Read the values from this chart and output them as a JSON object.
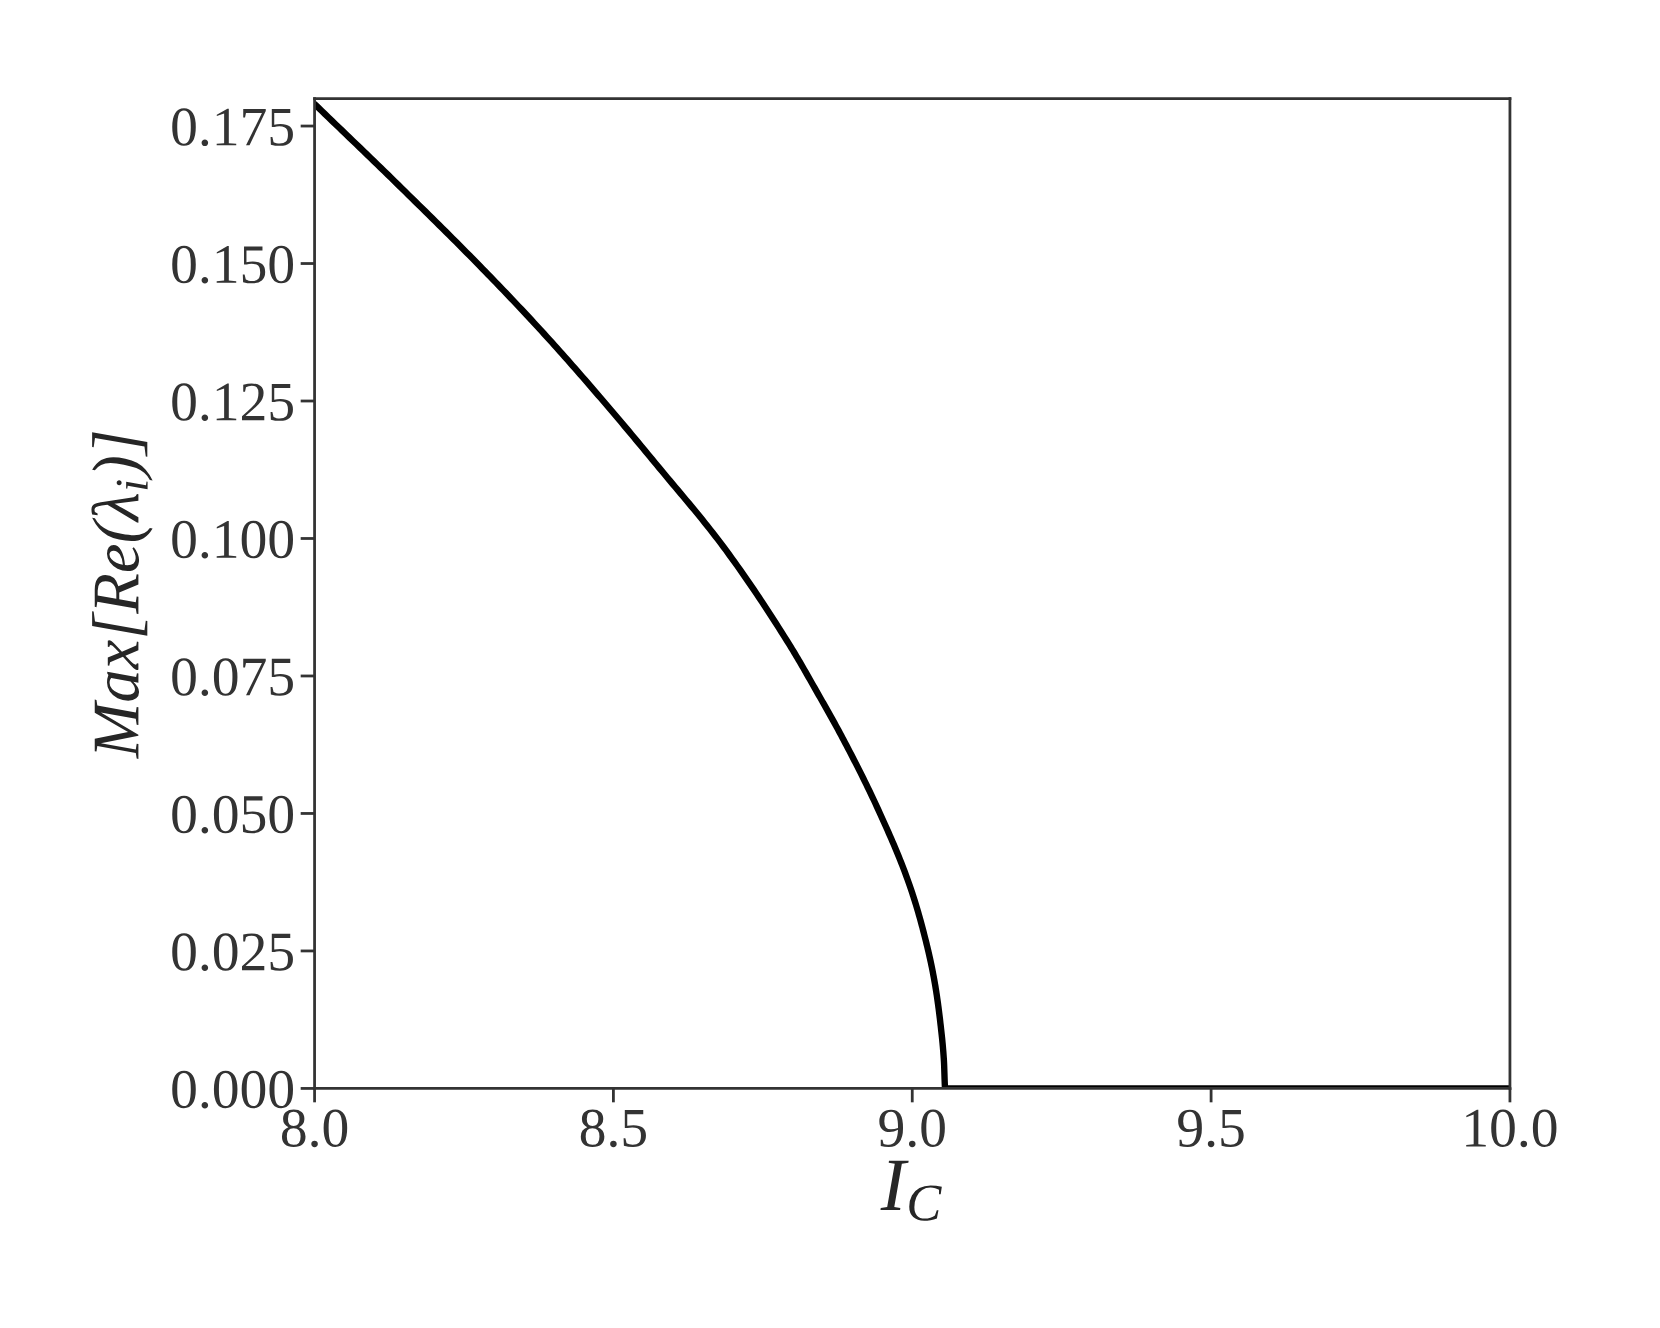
{
  "chart_data": {
    "type": "line",
    "xlabel": "I$_{C}$",
    "ylabel": "Max[Re(λ$_{i}$)]",
    "series": [
      {
        "color": "#000000",
        "x": [
          8.0,
          8.14,
          8.277,
          8.38,
          8.483,
          8.577,
          8.684,
          8.795,
          8.84,
          8.885,
          8.946,
          8.996,
          9.02,
          9.038,
          9.048,
          9.053,
          9.055,
          10.0
        ],
        "values": [
          0.179,
          0.1643,
          0.1495,
          0.1377,
          0.125,
          0.1128,
          0.0985,
          0.0806,
          0.0722,
          0.0634,
          0.05,
          0.0368,
          0.028,
          0.019,
          0.011,
          0.005,
          0.0,
          0.0
        ]
      }
    ],
    "xlim": [
      8.0,
      10.0
    ],
    "xticks": [
      {
        "value": 8,
        "label": "8.0"
      },
      {
        "value": 8.5,
        "label": "8.5"
      },
      {
        "value": 9,
        "label": "9.0"
      },
      {
        "value": 9.5,
        "label": "9.5"
      },
      {
        "value": 10,
        "label": "10.0"
      }
    ],
    "ylim": [
      0,
      0.18
    ],
    "yticks": [
      {
        "value": 0,
        "label": "0.000"
      },
      {
        "value": 0.025,
        "label": "0.025"
      },
      {
        "value": 0.05,
        "label": "0.050"
      },
      {
        "value": 0.075,
        "label": "0.075"
      },
      {
        "value": 0.1,
        "label": "0.100"
      },
      {
        "value": 0.125,
        "label": "0.125"
      },
      {
        "value": 0.15,
        "label": "0.150"
      },
      {
        "value": 0.175,
        "label": "0.175"
      }
    ],
    "marker": "none",
    "line_style": "solid"
  }
}
